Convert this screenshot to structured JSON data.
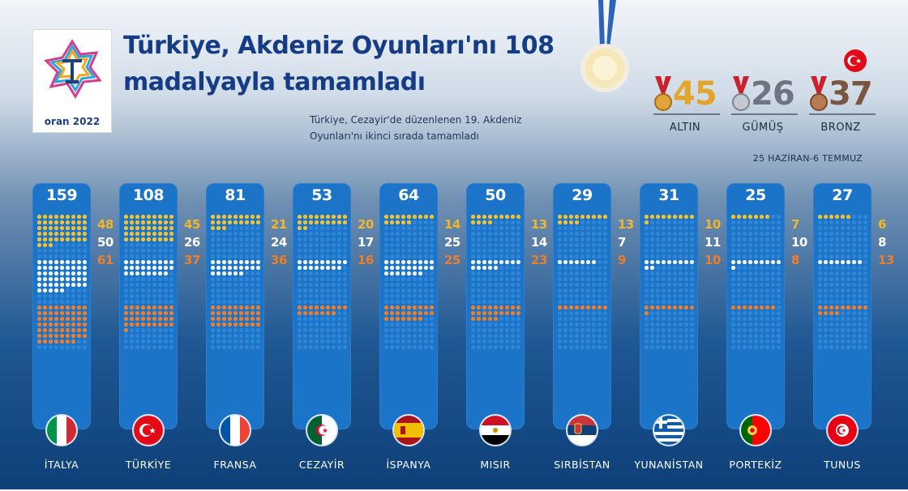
{
  "title": "Türkiye, Akdeniz Oyunları'nı 108 madalyayla tamamladı",
  "subtitle": "Türkiye, Cezayir'de düzenlenen 19. Akdeniz Oyunları'nı ikinci sırada tamamladı",
  "logo_text": "oran 2022",
  "dates": "25 HAZİRAN-6 TEMMUZ",
  "summary": [
    {
      "label": "ALTIN",
      "value": "45",
      "color": "#e3a52a"
    },
    {
      "label": "GÜMÜŞ",
      "value": "26",
      "color": "#6f7580"
    },
    {
      "label": "BRONZ",
      "value": "37",
      "color": "#7a5640"
    }
  ],
  "colors": {
    "gold": "#f1c232",
    "silver": "#f3f5f8",
    "bronze": "#ef7e2a",
    "empty": "#2f85d6"
  },
  "chart_data": {
    "type": "table",
    "categories": [
      "İTALYA",
      "TÜRKİYE",
      "FRANSA",
      "CEZAYİR",
      "İSPANYA",
      "MISIR",
      "SIRBİSTAN",
      "YUNANİSTAN",
      "PORTEKİZ",
      "TUNUS"
    ],
    "totals": [
      159,
      108,
      81,
      53,
      64,
      50,
      29,
      31,
      25,
      27
    ],
    "series": [
      {
        "name": "ALTIN",
        "values": [
          48,
          45,
          21,
          20,
          14,
          13,
          13,
          10,
          7,
          6
        ]
      },
      {
        "name": "GÜMÜŞ",
        "values": [
          50,
          26,
          24,
          17,
          25,
          14,
          7,
          11,
          10,
          8
        ]
      },
      {
        "name": "BRONZ",
        "values": [
          61,
          37,
          36,
          16,
          25,
          23,
          9,
          10,
          8,
          13
        ]
      }
    ]
  },
  "flags": [
    "italy",
    "turkey",
    "france",
    "algeria",
    "spain",
    "egypt",
    "serbia",
    "greece",
    "portugal",
    "tunisia"
  ]
}
